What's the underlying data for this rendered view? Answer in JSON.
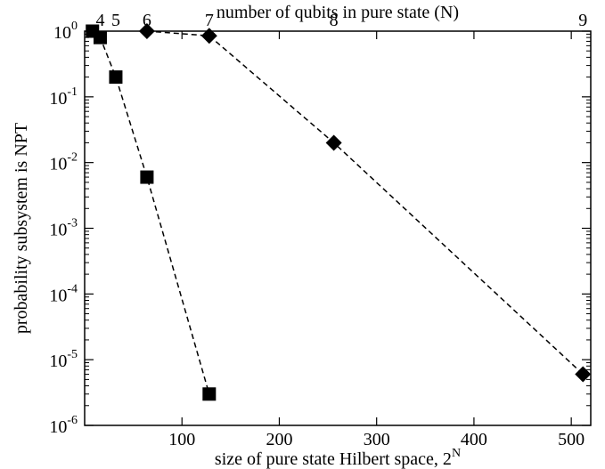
{
  "chart_data": {
    "type": "scatter",
    "title": "",
    "xlabel": "size of pure state Hilbert space, 2",
    "xlabel_superscript": "N",
    "ylabel": "probability subsystem is NPT",
    "top_xlabel": "number of qubits in pure state (N)",
    "xlim": [
      0,
      520
    ],
    "ylim": [
      1e-06,
      1
    ],
    "yscale": "log",
    "grid": false,
    "x_ticks": [
      {
        "value": 100,
        "label": "100"
      },
      {
        "value": 200,
        "label": "200"
      },
      {
        "value": 300,
        "label": "300"
      },
      {
        "value": 400,
        "label": "400"
      },
      {
        "value": 500,
        "label": "500"
      }
    ],
    "y_ticks": [
      {
        "exp": 0,
        "base": "10",
        "sup": "0"
      },
      {
        "exp": -1,
        "base": "10",
        "sup": "-1"
      },
      {
        "exp": -2,
        "base": "10",
        "sup": "-2"
      },
      {
        "exp": -3,
        "base": "10",
        "sup": "-3"
      },
      {
        "exp": -4,
        "base": "10",
        "sup": "-4"
      },
      {
        "exp": -5,
        "base": "10",
        "sup": "-5"
      },
      {
        "exp": -6,
        "base": "10",
        "sup": "-6"
      }
    ],
    "top_ticks": [
      {
        "value": 16,
        "label": "4"
      },
      {
        "value": 32,
        "label": "5"
      },
      {
        "value": 64,
        "label": "6"
      },
      {
        "value": 128,
        "label": "7"
      },
      {
        "value": 256,
        "label": "8"
      },
      {
        "value": 512,
        "label": "9"
      }
    ],
    "series": [
      {
        "marker": "square",
        "line": "dashed",
        "color": "#000000",
        "points": [
          {
            "x": 8,
            "y": 1.0
          },
          {
            "x": 16,
            "y": 0.8
          },
          {
            "x": 32,
            "y": 0.2
          },
          {
            "x": 64,
            "y": 0.006
          },
          {
            "x": 128,
            "y": 3e-06
          }
        ]
      },
      {
        "marker": "diamond",
        "line": "dashed",
        "color": "#000000",
        "points": [
          {
            "x": 64,
            "y": 1.0
          },
          {
            "x": 128,
            "y": 0.85
          },
          {
            "x": 256,
            "y": 0.02
          },
          {
            "x": 512,
            "y": 6e-06
          }
        ]
      }
    ]
  }
}
